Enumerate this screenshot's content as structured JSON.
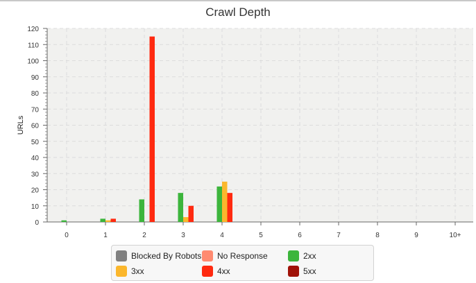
{
  "chart_data": {
    "type": "bar",
    "title": "Crawl Depth",
    "xlabel": "",
    "ylabel": "URLs",
    "ylim": [
      0,
      120
    ],
    "yticks": [
      0,
      10,
      20,
      30,
      40,
      50,
      60,
      70,
      80,
      90,
      100,
      110,
      120
    ],
    "categories": [
      "0",
      "1",
      "2",
      "3",
      "4",
      "5",
      "6",
      "7",
      "8",
      "9",
      "10+"
    ],
    "grid": true,
    "legend_position": "bottom",
    "series": [
      {
        "name": "Blocked By Robots",
        "color": "#808080",
        "values": [
          0,
          0,
          0,
          0,
          0,
          0,
          0,
          0,
          0,
          0,
          0
        ]
      },
      {
        "name": "No Response",
        "color": "#ff8a70",
        "values": [
          0,
          0,
          0,
          0,
          0,
          0,
          0,
          0,
          0,
          0,
          0
        ]
      },
      {
        "name": "2xx",
        "color": "#3cb53c",
        "values": [
          1,
          2,
          14,
          18,
          22,
          0,
          0,
          0,
          0,
          0,
          0
        ]
      },
      {
        "name": "3xx",
        "color": "#fbb72d",
        "values": [
          0,
          1,
          0,
          3,
          25,
          0,
          0,
          0,
          0,
          0,
          0
        ]
      },
      {
        "name": "4xx",
        "color": "#ff2a10",
        "values": [
          0,
          2,
          115,
          10,
          18,
          0,
          0,
          0,
          0,
          0,
          0
        ]
      },
      {
        "name": "5xx",
        "color": "#a01208",
        "values": [
          0,
          0,
          0,
          0,
          0,
          0,
          0,
          0,
          0,
          0,
          0
        ]
      }
    ]
  }
}
